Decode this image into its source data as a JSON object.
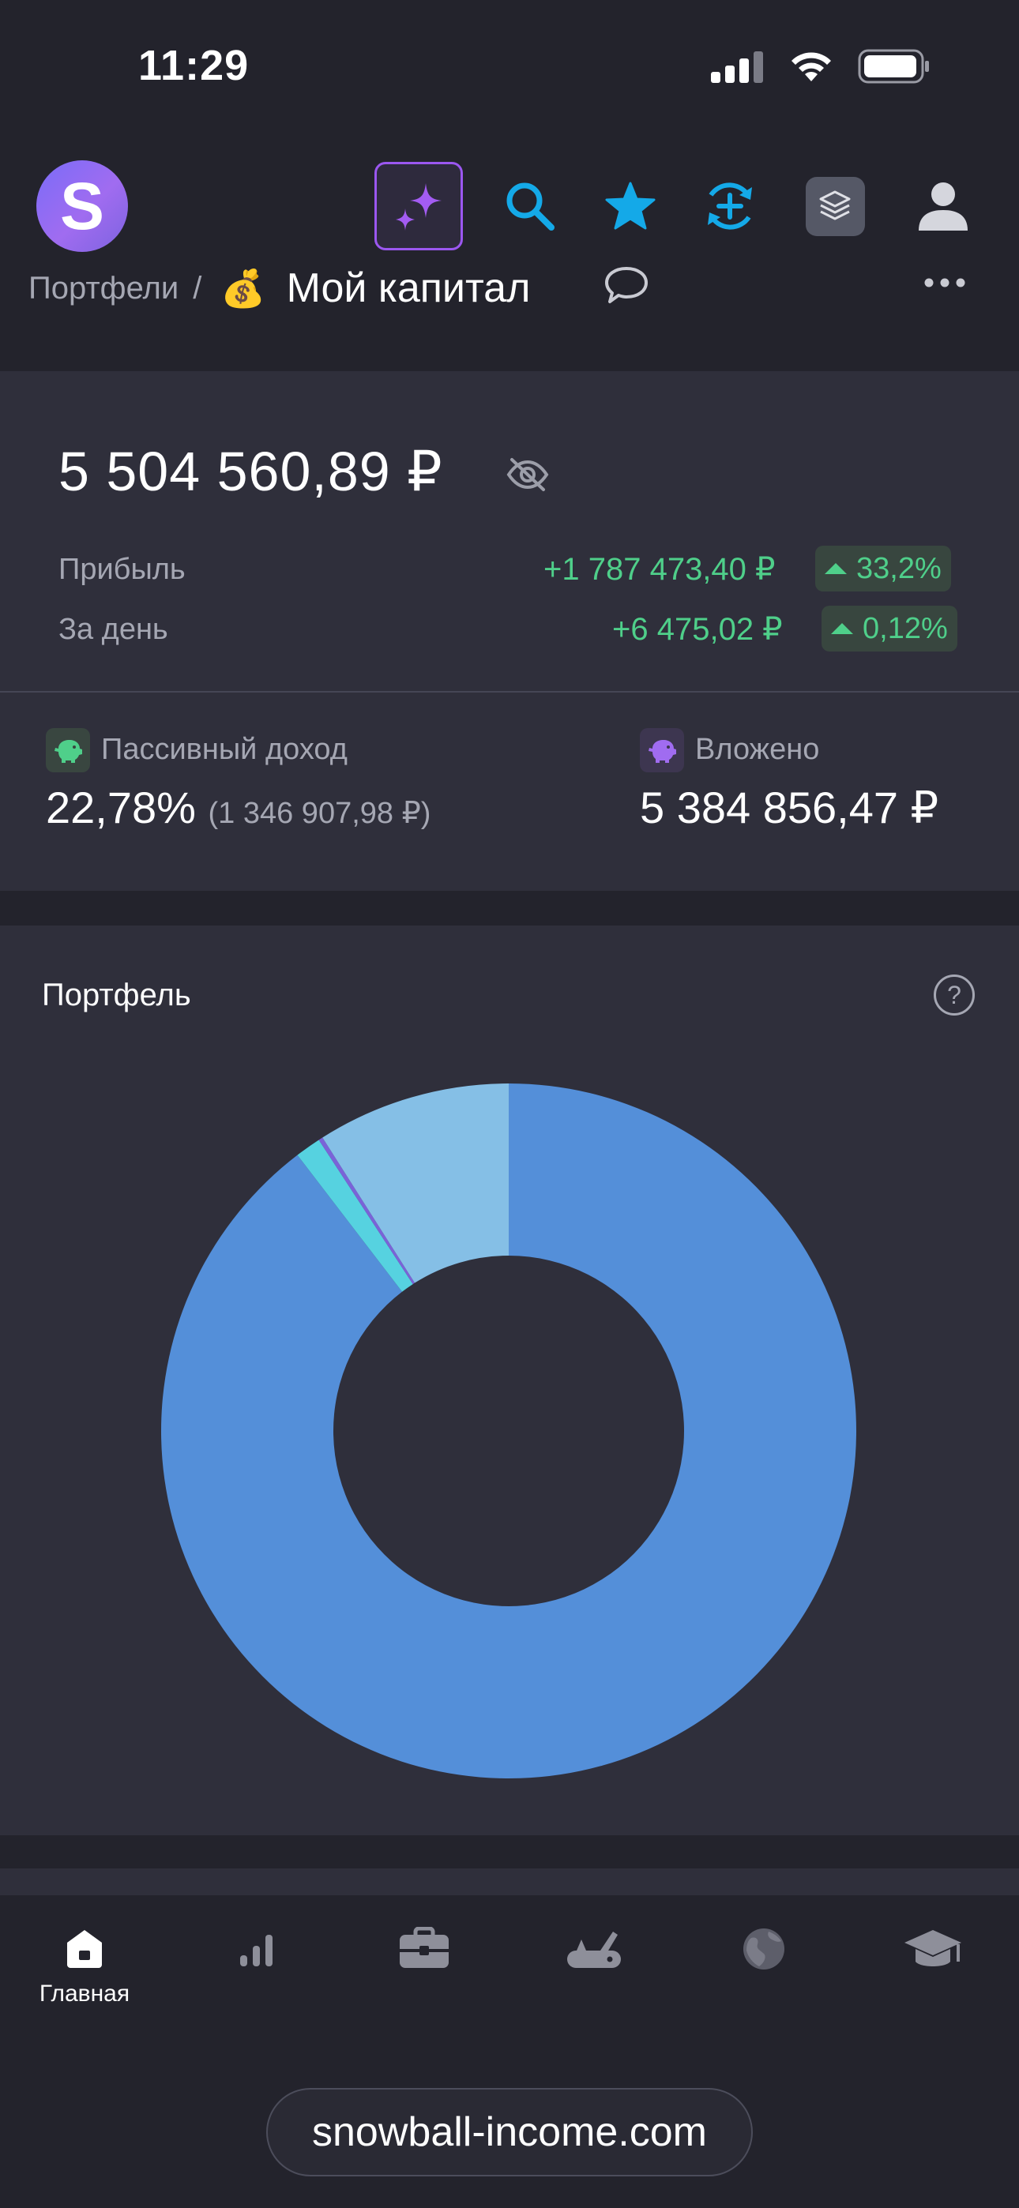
{
  "status_bar": {
    "time": "11:29"
  },
  "header": {
    "logo_letter": "S",
    "icons": [
      "ai-sparkle-icon",
      "search-icon",
      "star-icon",
      "sync-add-icon",
      "layers-icon",
      "user-icon"
    ],
    "breadcrumb_parent": "Портфели",
    "breadcrumb_separator": "/",
    "portfolio_emoji": "💰",
    "portfolio_name": "Мой капитал"
  },
  "summary": {
    "total_value": "5 504 560,89 ₽",
    "profit_label": "Прибыль",
    "profit_value": "+1 787 473,40 ₽",
    "profit_percent": "33,2%",
    "day_label": "За день",
    "day_value": "+6 475,02 ₽",
    "day_percent": "0,12%",
    "passive_income_label": "Пассивный доход",
    "passive_income_percent": "22,78%",
    "passive_income_amount": "(1 346 907,98 ₽)",
    "invested_label": "Вложено",
    "invested_value": "5 384 856,47 ₽",
    "positive_color": "#4fcf8a"
  },
  "portfolio": {
    "title": "Портфель",
    "help_symbol": "?"
  },
  "chart_data": {
    "type": "pie",
    "title": "",
    "subtype": "donut",
    "slices": [
      {
        "value": 89.6,
        "color": "#548fd9"
      },
      {
        "value": 1.2,
        "color": "#56d2e0"
      },
      {
        "value": 0.2,
        "color": "#7a63d8"
      },
      {
        "value": 9.0,
        "color": "#85bfe6"
      }
    ]
  },
  "bottom_nav": {
    "items": [
      {
        "label": "Главная",
        "icon": "home-icon",
        "active": true
      },
      {
        "label": "",
        "icon": "analytics-icon",
        "active": false
      },
      {
        "label": "",
        "icon": "briefcase-icon",
        "active": false
      },
      {
        "label": "",
        "icon": "tools-icon",
        "active": false
      },
      {
        "label": "",
        "icon": "globe-icon",
        "active": false
      },
      {
        "label": "",
        "icon": "education-icon",
        "active": false
      }
    ]
  },
  "browser": {
    "url": "snowball-income.com"
  }
}
